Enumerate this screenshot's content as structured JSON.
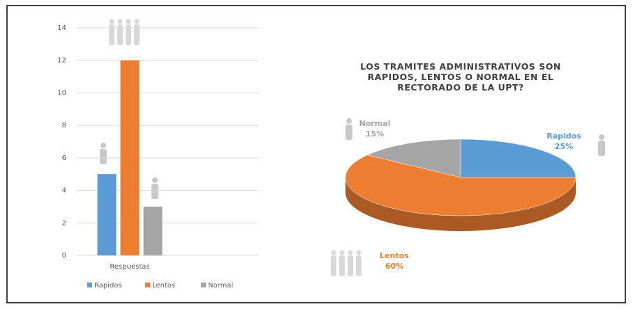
{
  "chart_data": [
    {
      "type": "bar",
      "categories": [
        "Respuestas"
      ],
      "series": [
        {
          "name": "Rapidos",
          "color": "#5b9bd5",
          "values": [
            5
          ]
        },
        {
          "name": "Lentos",
          "color": "#ed7d31",
          "values": [
            12
          ]
        },
        {
          "name": "Normal",
          "color": "#a5a5a5",
          "values": [
            3
          ]
        }
      ],
      "ylim": [
        0,
        14
      ],
      "yticks": [
        0,
        2,
        4,
        6,
        8,
        10,
        12,
        14
      ],
      "grid": true,
      "legend": "bottom"
    },
    {
      "type": "pie",
      "title": "LOS TRAMITES ADMINISTRATIVOS SON RAPIDOS, LENTOS O NORMAL EN EL RECTORADO DE LA UPT?",
      "categories": [
        "Rapidos",
        "Lentos",
        "Normal"
      ],
      "values": [
        25,
        60,
        15
      ],
      "value_labels": [
        "25%",
        "60%",
        "15%"
      ],
      "colors": [
        "#5b9bd5",
        "#ed7d31",
        "#a5a5a5"
      ]
    }
  ]
}
